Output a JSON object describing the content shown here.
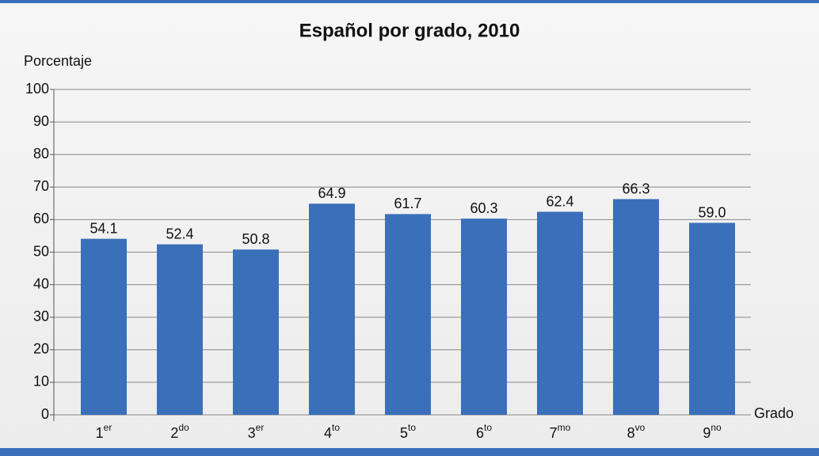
{
  "chart_data": {
    "type": "bar",
    "title": "Español por grado, 2010",
    "y_label": "Porcentaje",
    "x_label": "Grado",
    "categories": [
      "1er",
      "2do",
      "3er",
      "4to",
      "5to",
      "6to",
      "7mo",
      "8vo",
      "9no"
    ],
    "values": [
      54.1,
      52.4,
      50.8,
      64.9,
      61.7,
      60.3,
      62.4,
      66.3,
      59.0
    ],
    "value_labels": [
      "54.1",
      "52.4",
      "50.8",
      "64.9",
      "61.7",
      "60.3",
      "62.4",
      "66.3",
      "59.0"
    ],
    "color": "#3a6fba",
    "ylim": [
      0,
      100
    ],
    "yticks": [
      0,
      10,
      20,
      30,
      40,
      50,
      60,
      70,
      80,
      90,
      100
    ],
    "grid": true
  }
}
